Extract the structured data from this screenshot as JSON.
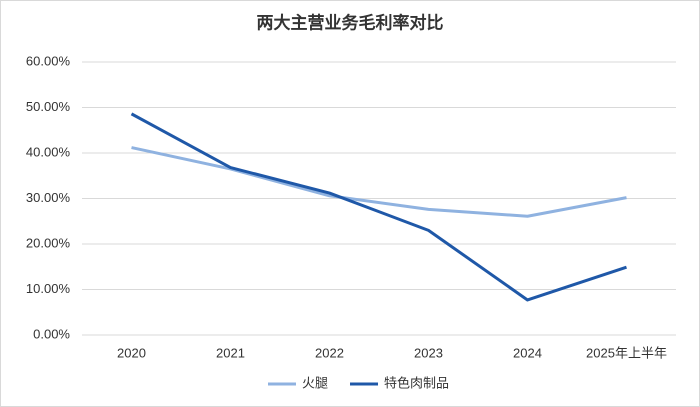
{
  "chart_data": {
    "type": "line",
    "title": "两大主营业务毛利率对比",
    "categories": [
      "2020",
      "2021",
      "2022",
      "2023",
      "2024",
      "2025年上半年"
    ],
    "series": [
      {
        "name": "火腿",
        "color": "#8fb2e0",
        "values": [
          41.2,
          36.5,
          30.6,
          27.6,
          26.1,
          30.2
        ]
      },
      {
        "name": "特色肉制品",
        "color": "#1f58a8",
        "values": [
          48.6,
          36.8,
          31.2,
          23.0,
          7.7,
          14.9
        ]
      }
    ],
    "ylim": [
      0,
      60
    ],
    "yticks": [
      {
        "value": 0,
        "label": "0.00%"
      },
      {
        "value": 10,
        "label": "10.00%"
      },
      {
        "value": 20,
        "label": "20.00%"
      },
      {
        "value": 30,
        "label": "30.00%"
      },
      {
        "value": 40,
        "label": "40.00%"
      },
      {
        "value": 50,
        "label": "50.00%"
      },
      {
        "value": 60,
        "label": "60.00%"
      }
    ],
    "grid": true,
    "legend": "bottom"
  }
}
